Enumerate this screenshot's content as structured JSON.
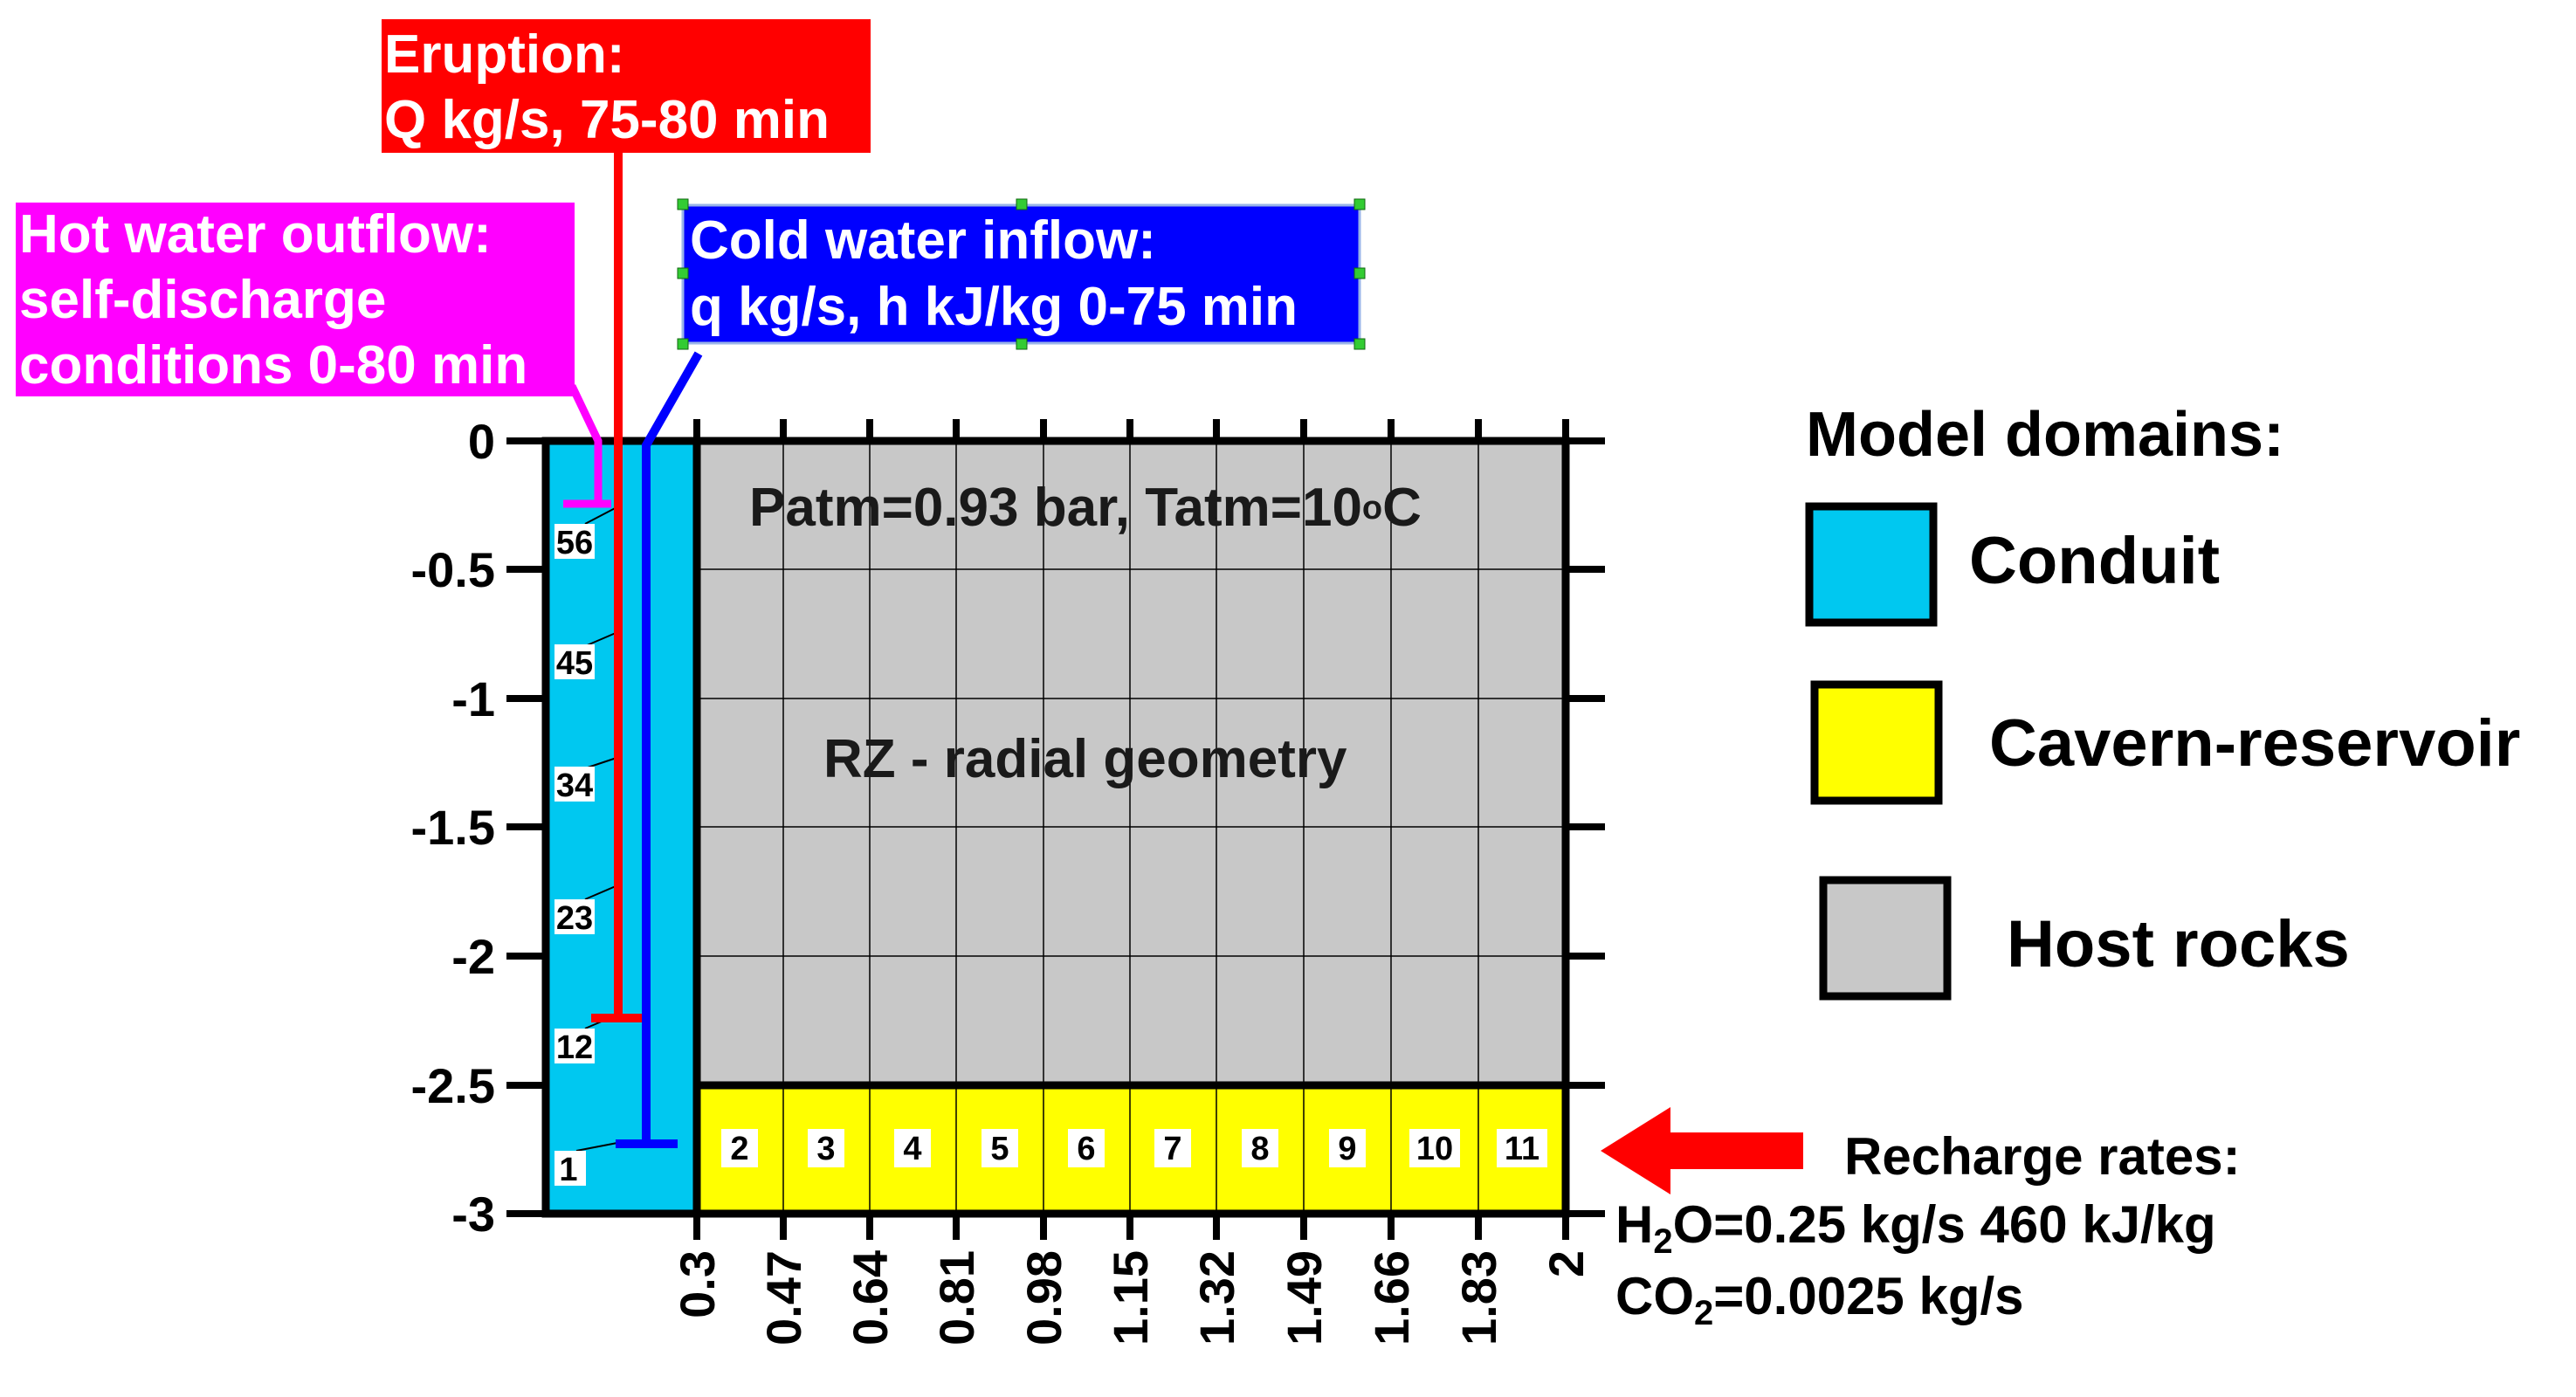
{
  "diagram": {
    "eruption_label": [
      "Eruption:",
      "Q kg/s, 75-80 min"
    ],
    "hot_water_label": [
      "Hot water outflow:",
      "self-discharge",
      "conditions 0-80 min"
    ],
    "cold_water_label": [
      "Cold water inflow:",
      "q kg/s, h kJ/kg 0-75 min"
    ],
    "atmosphere_label": "Patm=0.93 bar, Tatm=10",
    "atmosphere_degree": "o",
    "atmosphere_unit": "C",
    "geometry_label": "RZ - radial geometry",
    "y_ticks": [
      "0",
      "-0.5",
      "-1",
      "-1.5",
      "-2",
      "-2.5",
      "-3"
    ],
    "x_ticks": [
      "0.3",
      "0.47",
      "0.64",
      "0.81",
      "0.98",
      "1.15",
      "1.32",
      "1.49",
      "1.66",
      "1.83",
      "2"
    ],
    "conduit_cells": [
      "56",
      "45",
      "34",
      "23",
      "12",
      "1"
    ],
    "reservoir_cells": [
      "2",
      "3",
      "4",
      "5",
      "6",
      "7",
      "8",
      "9",
      "10",
      "11"
    ],
    "recharge_title": "Recharge rates:",
    "recharge_h2o_prefix": "H",
    "recharge_h2o_sub": "2",
    "recharge_h2o_suffix": "O=0.25 kg/s 460 kJ/kg",
    "recharge_co2_prefix": "CO",
    "recharge_co2_sub": "2",
    "recharge_co2_suffix": "=0.0025 kg/s"
  },
  "legend": {
    "title": "Model domains:",
    "items": [
      {
        "label": "Conduit",
        "color": "#00c8f0"
      },
      {
        "label": "Cavern-reservoir",
        "color": "#ffff00"
      },
      {
        "label": "Host rocks",
        "color": "#c8c8c8"
      }
    ]
  },
  "colors": {
    "eruption": "#ff0000",
    "hot_water": "#ff00ff",
    "cold_water": "#0000ff",
    "conduit": "#00c8f0",
    "reservoir": "#ffff00",
    "host": "#c8c8c8",
    "recharge_arrow": "#ff0000"
  }
}
